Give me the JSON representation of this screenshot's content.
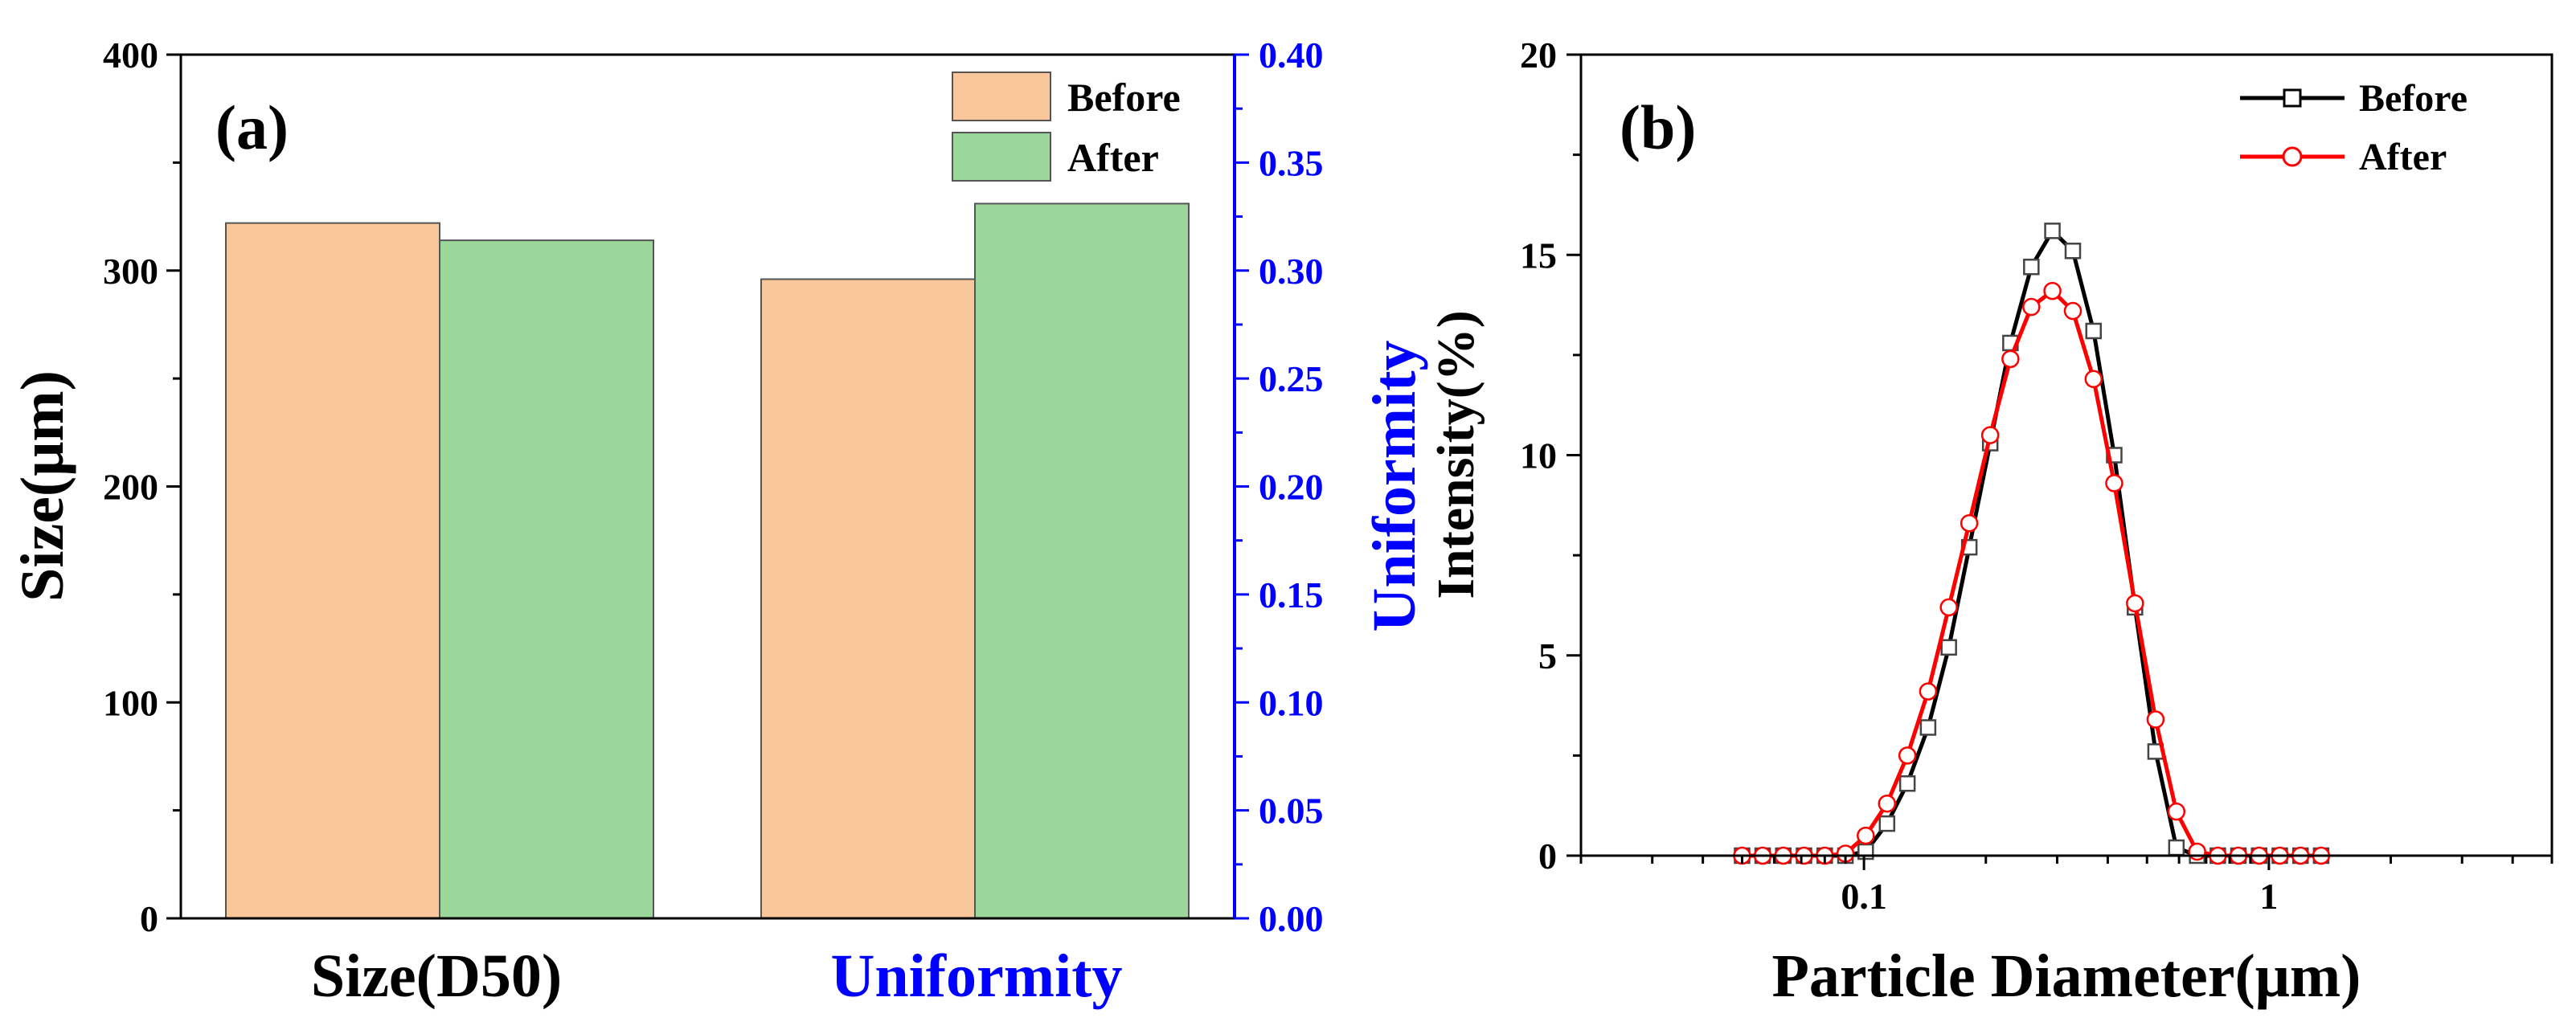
{
  "chart_data": [
    {
      "type": "bar",
      "panel_label": "(a)",
      "categories": [
        "Size(D50)",
        "Uniformity"
      ],
      "series": [
        {
          "name": "Before",
          "color": "#f9c79a",
          "values": [
            322,
            0.296
          ]
        },
        {
          "name": "After",
          "color": "#9bd69b",
          "values": [
            314,
            0.331
          ]
        }
      ],
      "ylabel": "Size(μm)",
      "ylim": [
        0,
        400
      ],
      "yticks": [
        "0",
        "100",
        "200",
        "300",
        "400"
      ],
      "ylabel_right": "Uniformity",
      "ylim_right": [
        0,
        0.4
      ],
      "yticks_right": [
        "0.00",
        "0.05",
        "0.10",
        "0.15",
        "0.20",
        "0.25",
        "0.30",
        "0.35",
        "0.40"
      ],
      "right_axis_color": "#0000ff",
      "category_colors": [
        "#000000",
        "#0000ff"
      ],
      "legend": "top-right",
      "grid": false
    },
    {
      "type": "line",
      "panel_label": "(b)",
      "xlabel": "Particle Diameter(μm)",
      "ylabel": "Intensity(%)",
      "xscale": "log",
      "xlim": [
        0.02,
        5
      ],
      "xticks": [
        "0.1",
        "1"
      ],
      "ylim": [
        0,
        20
      ],
      "yticks": [
        "0",
        "5",
        "10",
        "15",
        "20"
      ],
      "legend": "top-right",
      "grid": false,
      "series": [
        {
          "name": "Before",
          "color": "#000000",
          "marker": "square",
          "x": [
            0.05,
            0.0562,
            0.0632,
            0.0711,
            0.08,
            0.09,
            0.101,
            0.114,
            0.128,
            0.144,
            0.162,
            0.182,
            0.205,
            0.23,
            0.259,
            0.292,
            0.328,
            0.369,
            0.415,
            0.467,
            0.525,
            0.591,
            0.665,
            0.748,
            0.841,
            0.946,
            1.064,
            1.197,
            1.346
          ],
          "y": [
            0,
            0,
            0,
            0,
            0,
            0,
            0.1,
            0.8,
            1.8,
            3.2,
            5.2,
            7.7,
            10.3,
            12.8,
            14.7,
            15.6,
            15.1,
            13.1,
            10.0,
            6.2,
            2.6,
            0.2,
            0,
            0,
            0,
            0,
            0,
            0,
            0
          ]
        },
        {
          "name": "After",
          "color": "#ff0000",
          "marker": "circle",
          "x": [
            0.05,
            0.0562,
            0.0632,
            0.0711,
            0.08,
            0.09,
            0.101,
            0.114,
            0.128,
            0.144,
            0.162,
            0.182,
            0.205,
            0.23,
            0.259,
            0.292,
            0.328,
            0.369,
            0.415,
            0.467,
            0.525,
            0.591,
            0.665,
            0.748,
            0.841,
            0.946,
            1.064,
            1.197,
            1.346
          ],
          "y": [
            0,
            0,
            0,
            0,
            0,
            0.05,
            0.5,
            1.3,
            2.5,
            4.1,
            6.2,
            8.3,
            10.5,
            12.4,
            13.7,
            14.1,
            13.6,
            11.9,
            9.3,
            6.3,
            3.4,
            1.1,
            0.1,
            0,
            0,
            0,
            0,
            0,
            0
          ]
        }
      ]
    }
  ]
}
